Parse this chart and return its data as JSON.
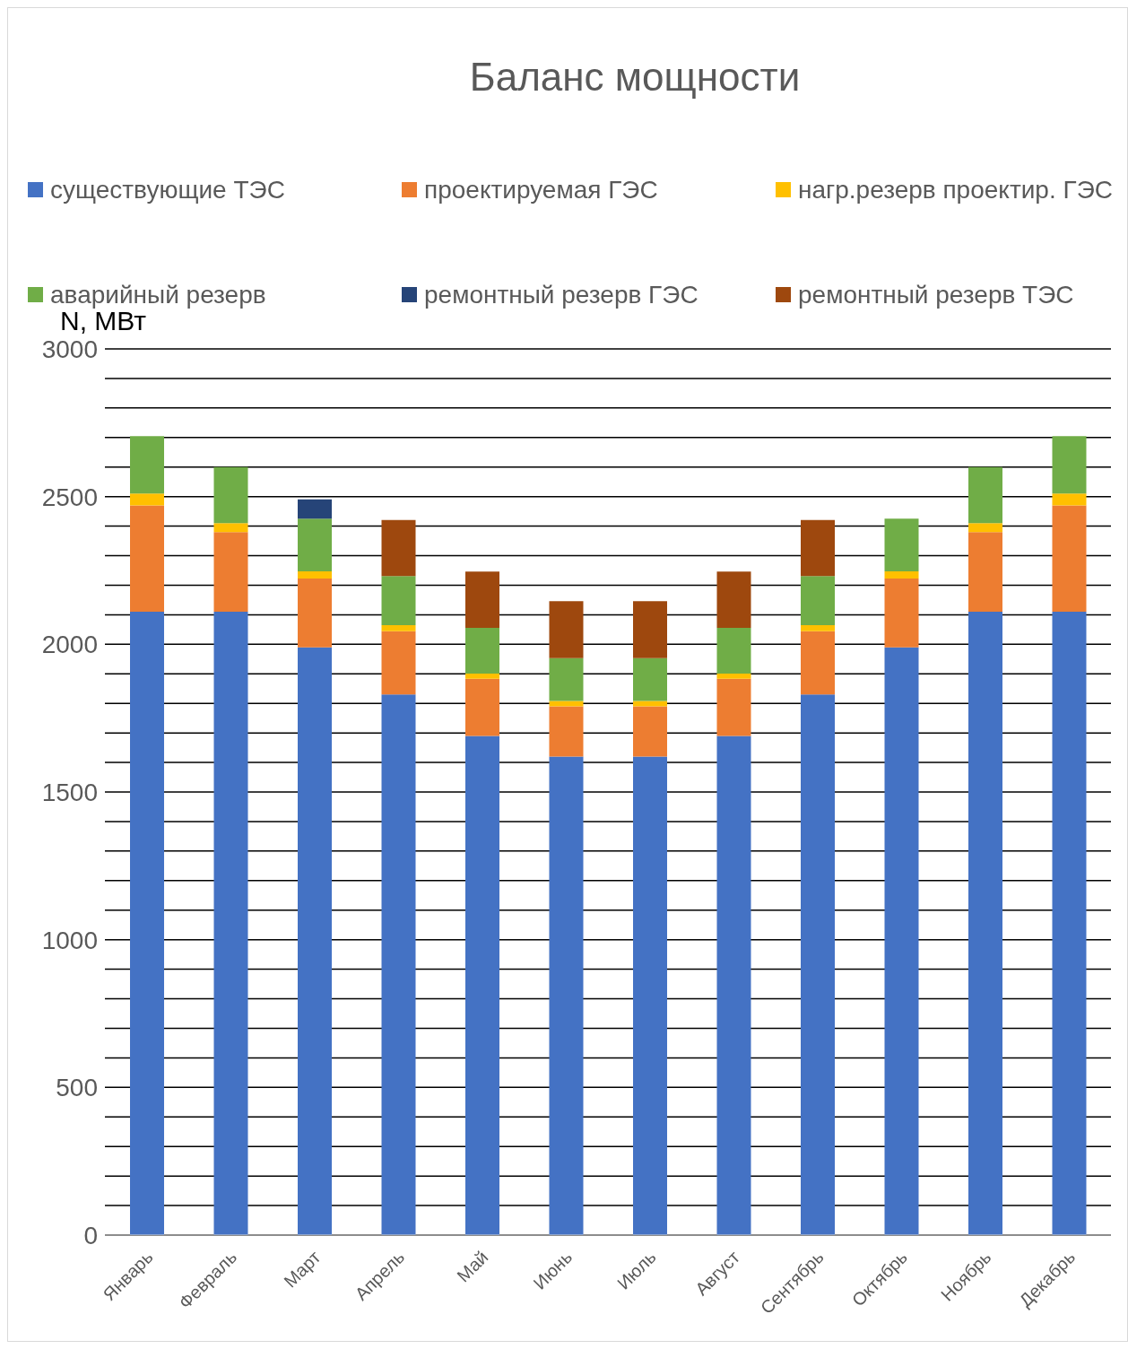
{
  "chart_data": {
    "type": "bar",
    "title": "Баланс мощности",
    "ylabel": "N, МВт",
    "stacked": true,
    "legend": "top",
    "grid": "y",
    "categories": [
      "Январь",
      "Февраль",
      "Март",
      "Апрель",
      "Май",
      "Июнь",
      "Июль",
      "Август",
      "Сентябрь",
      "Октябрь",
      "Ноябрь",
      "Декабрь"
    ],
    "ylim": [
      0,
      3000
    ],
    "yticks": [
      0,
      {
        "value": 100,
        "label": null
      },
      {
        "value": 200,
        "label": null
      },
      {
        "value": 300,
        "label": null
      },
      {
        "value": 400,
        "label": null
      },
      500,
      {
        "value": 600,
        "label": null
      },
      {
        "value": 700,
        "label": null
      },
      {
        "value": 800,
        "label": null
      },
      {
        "value": 900,
        "label": null
      },
      1000,
      {
        "value": 1100,
        "label": null
      },
      {
        "value": 1200,
        "label": null
      },
      {
        "value": 1300,
        "label": null
      },
      {
        "value": 1400,
        "label": null
      },
      1500,
      {
        "value": 1600,
        "label": null
      },
      {
        "value": 1700,
        "label": null
      },
      {
        "value": 1800,
        "label": null
      },
      {
        "value": 1900,
        "label": null
      },
      2000,
      {
        "value": 2100,
        "label": null
      },
      {
        "value": 2200,
        "label": null
      },
      {
        "value": 2300,
        "label": null
      },
      {
        "value": 2400,
        "label": null
      },
      2500,
      {
        "value": 2600,
        "label": null
      },
      {
        "value": 2700,
        "label": null
      },
      {
        "value": 2800,
        "label": null
      },
      {
        "value": 2900,
        "label": null
      },
      3000
    ],
    "series": [
      {
        "name": "существующие ТЭС",
        "color": "#4472c4",
        "values": [
          2110,
          2110,
          1990,
          1830,
          1690,
          1620,
          1620,
          1690,
          1830,
          1990,
          2110,
          2110
        ]
      },
      {
        "name": "проектируемая ГЭС",
        "color": "#ed7d31",
        "values": [
          360,
          270,
          233,
          214,
          193,
          170,
          170,
          193,
          214,
          233,
          270,
          360
        ]
      },
      {
        "name": "нагр.резерв проектир. ГЭС",
        "color": "#ffc000",
        "values": [
          40,
          30,
          24,
          21,
          18,
          18,
          18,
          18,
          21,
          24,
          30,
          40
        ]
      },
      {
        "name": "аварийный резерв",
        "color": "#70ad47",
        "values": [
          195,
          190,
          178,
          166,
          155,
          145,
          145,
          155,
          166,
          178,
          190,
          195
        ]
      },
      {
        "name": "ремонтный резерв ГЭС",
        "color": "#264478",
        "values": [
          null,
          null,
          66,
          null,
          null,
          null,
          null,
          null,
          null,
          null,
          null,
          null
        ]
      },
      {
        "name": "ремонтный резерв ТЭС",
        "color": "#9e480e",
        "values": [
          null,
          null,
          null,
          190,
          190,
          193,
          193,
          190,
          190,
          null,
          null,
          null
        ]
      }
    ]
  }
}
